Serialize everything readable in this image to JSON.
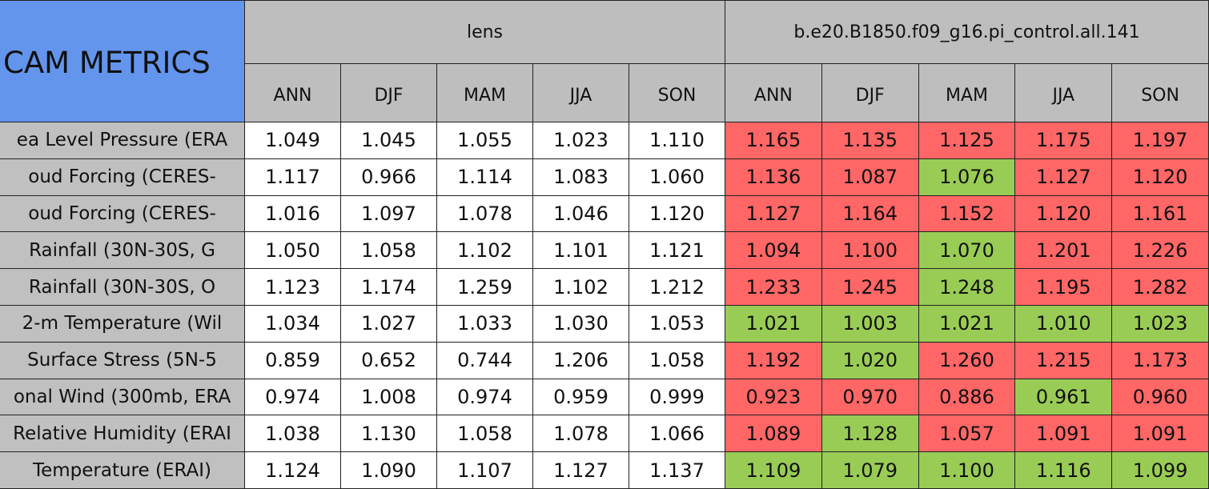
{
  "header": {
    "corner": "CAM METRICS",
    "groups": [
      {
        "name": "lens",
        "columns": [
          "ANN",
          "DJF",
          "MAM",
          "JJA",
          "SON"
        ]
      },
      {
        "name": "b.e20.B1850.f09_g16.pi_control.all.141",
        "columns": [
          "ANN",
          "DJF",
          "MAM",
          "JJA",
          "SON"
        ]
      }
    ]
  },
  "table": {
    "rows": [
      {
        "label": "ea Level Pressure (ERA",
        "cells": [
          "1.049",
          "1.045",
          "1.055",
          "1.023",
          "1.110",
          "1.165",
          "1.135",
          "1.125",
          "1.175",
          "1.197"
        ],
        "colors": [
          "#ffffff",
          "#ffffff",
          "#ffffff",
          "#ffffff",
          "#ffffff",
          "#ff6666",
          "#ff6666",
          "#ff6666",
          "#ff6666",
          "#ff6666"
        ]
      },
      {
        "label": "oud Forcing (CERES-",
        "cells": [
          "1.117",
          "0.966",
          "1.114",
          "1.083",
          "1.060",
          "1.136",
          "1.087",
          "1.076",
          "1.127",
          "1.120"
        ],
        "colors": [
          "#ffffff",
          "#ffffff",
          "#ffffff",
          "#ffffff",
          "#ffffff",
          "#ff6666",
          "#ff6666",
          "#99cc55",
          "#ff6666",
          "#ff6666"
        ]
      },
      {
        "label": "oud Forcing (CERES-",
        "cells": [
          "1.016",
          "1.097",
          "1.078",
          "1.046",
          "1.120",
          "1.127",
          "1.164",
          "1.152",
          "1.120",
          "1.161"
        ],
        "colors": [
          "#ffffff",
          "#ffffff",
          "#ffffff",
          "#ffffff",
          "#ffffff",
          "#ff6666",
          "#ff6666",
          "#ff6666",
          "#ff6666",
          "#ff6666"
        ]
      },
      {
        "label": "Rainfall (30N-30S, G",
        "cells": [
          "1.050",
          "1.058",
          "1.102",
          "1.101",
          "1.121",
          "1.094",
          "1.100",
          "1.070",
          "1.201",
          "1.226"
        ],
        "colors": [
          "#ffffff",
          "#ffffff",
          "#ffffff",
          "#ffffff",
          "#ffffff",
          "#ff6666",
          "#ff6666",
          "#99cc55",
          "#ff6666",
          "#ff6666"
        ]
      },
      {
        "label": "Rainfall (30N-30S, O",
        "cells": [
          "1.123",
          "1.174",
          "1.259",
          "1.102",
          "1.212",
          "1.233",
          "1.245",
          "1.248",
          "1.195",
          "1.282"
        ],
        "colors": [
          "#ffffff",
          "#ffffff",
          "#ffffff",
          "#ffffff",
          "#ffffff",
          "#ff6666",
          "#ff6666",
          "#99cc55",
          "#ff6666",
          "#ff6666"
        ]
      },
      {
        "label": "2-m Temperature (Wil",
        "cells": [
          "1.034",
          "1.027",
          "1.033",
          "1.030",
          "1.053",
          "1.021",
          "1.003",
          "1.021",
          "1.010",
          "1.023"
        ],
        "colors": [
          "#ffffff",
          "#ffffff",
          "#ffffff",
          "#ffffff",
          "#ffffff",
          "#99cc55",
          "#99cc55",
          "#99cc55",
          "#99cc55",
          "#99cc55"
        ]
      },
      {
        "label": "Surface Stress (5N-5",
        "cells": [
          "0.859",
          "0.652",
          "0.744",
          "1.206",
          "1.058",
          "1.192",
          "1.020",
          "1.260",
          "1.215",
          "1.173"
        ],
        "colors": [
          "#ffffff",
          "#ffffff",
          "#ffffff",
          "#ffffff",
          "#ffffff",
          "#ff6666",
          "#99cc55",
          "#ff6666",
          "#ff6666",
          "#ff6666"
        ]
      },
      {
        "label": "onal Wind (300mb, ERA",
        "cells": [
          "0.974",
          "1.008",
          "0.974",
          "0.959",
          "0.999",
          "0.923",
          "0.970",
          "0.886",
          "0.961",
          "0.960"
        ],
        "colors": [
          "#ffffff",
          "#ffffff",
          "#ffffff",
          "#ffffff",
          "#ffffff",
          "#ff6666",
          "#ff6666",
          "#ff6666",
          "#99cc55",
          "#ff6666"
        ]
      },
      {
        "label": "Relative Humidity (ERAI",
        "cells": [
          "1.038",
          "1.130",
          "1.058",
          "1.078",
          "1.066",
          "1.089",
          "1.128",
          "1.057",
          "1.091",
          "1.091"
        ],
        "colors": [
          "#ffffff",
          "#ffffff",
          "#ffffff",
          "#ffffff",
          "#ffffff",
          "#ff6666",
          "#99cc55",
          "#ff6666",
          "#ff6666",
          "#ff6666"
        ]
      },
      {
        "label": "Temperature (ERAI)",
        "cells": [
          "1.124",
          "1.090",
          "1.107",
          "1.127",
          "1.137",
          "1.109",
          "1.079",
          "1.100",
          "1.116",
          "1.099"
        ],
        "colors": [
          "#ffffff",
          "#ffffff",
          "#ffffff",
          "#ffffff",
          "#ffffff",
          "#99cc55",
          "#99cc55",
          "#99cc55",
          "#99cc55",
          "#99cc55"
        ]
      }
    ]
  }
}
